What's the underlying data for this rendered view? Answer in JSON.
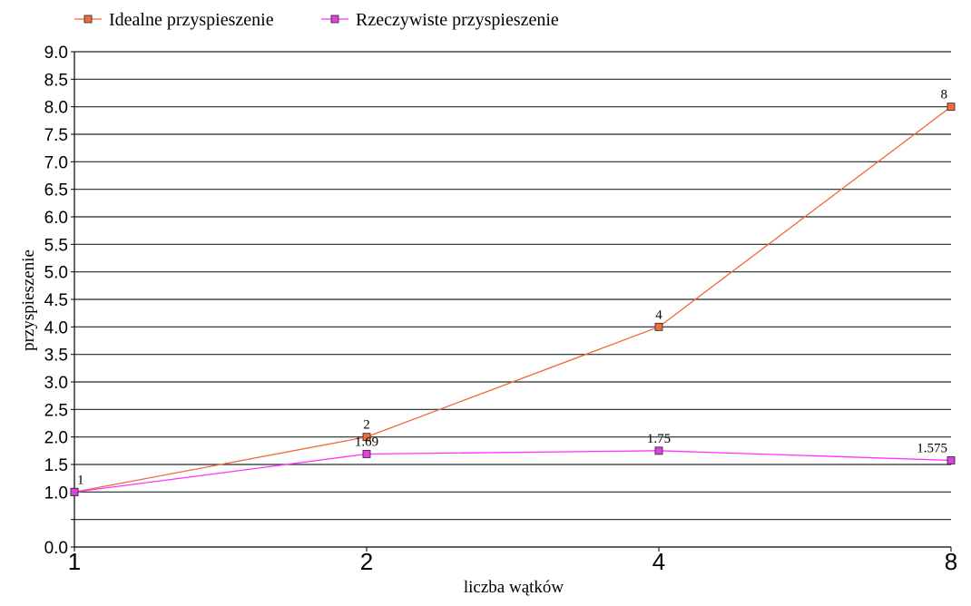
{
  "chart_data": {
    "type": "line",
    "categories": [
      "1",
      "2",
      "4",
      "8"
    ],
    "x": [
      1,
      2,
      4,
      8
    ],
    "xlabel": "liczba wątków",
    "ylabel": "przyspieszenie",
    "ylim": [
      0,
      9
    ],
    "yticks": [
      "0.0",
      "",
      "1.0",
      "1.5",
      "2.0",
      "2.5",
      "3.0",
      "3.5",
      "4.0",
      "4.5",
      "5.0",
      "5.5",
      "6.0",
      "6.5",
      "7.0",
      "7.5",
      "8.0",
      "8.5",
      "9.0"
    ],
    "ytick_values": [
      0,
      0.5,
      1.0,
      1.5,
      2.0,
      2.5,
      3.0,
      3.5,
      4.0,
      4.5,
      5.0,
      5.5,
      6.0,
      6.5,
      7.0,
      7.5,
      8.0,
      8.5,
      9.0
    ],
    "grid": true,
    "legend_position": "top-left",
    "series": [
      {
        "name": "Idealne przyspieszenie",
        "values": [
          1,
          2,
          4,
          8
        ],
        "labels": [
          "1",
          "2",
          "4",
          "8"
        ],
        "color": "#f2683a",
        "marker_fill": "#f26b3a",
        "marker": "square"
      },
      {
        "name": "Rzeczywiste przyspieszenie",
        "values": [
          1,
          1.69,
          1.75,
          1.575
        ],
        "labels": [
          "",
          "1.69",
          "1.75",
          "1.575"
        ],
        "color": "#ff33ff",
        "marker_fill": "#e040e0",
        "marker": "square"
      }
    ]
  }
}
